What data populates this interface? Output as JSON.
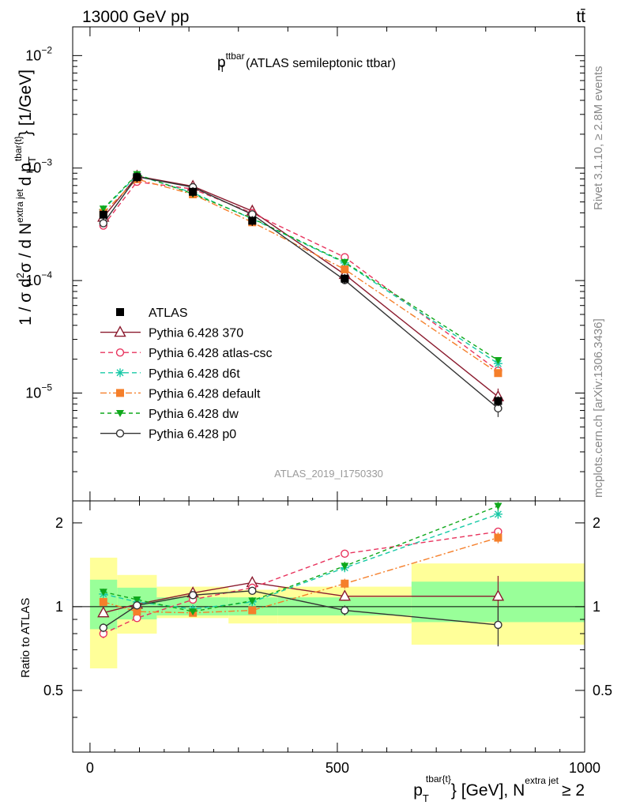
{
  "header": {
    "left": "13000 GeV pp",
    "right": "tt̄"
  },
  "side_labels": {
    "rivet": "Rivet 3.1.10, ≥ 2.8M events",
    "mcplots": "mcplots.cern.ch [arXiv:1306.3436]"
  },
  "watermark": "ATLAS_2019_I1750330",
  "chart_data": {
    "type": "line",
    "title": {
      "main": "p",
      "sup": "ttbar",
      "sub": "T",
      "rest": "(ATLAS semileptonic ttbar)"
    },
    "xlabel": {
      "p": "p",
      "sub": "T",
      "sup": "tbar{t}",
      "rest": "} [GeV], N",
      "sup2": "extra jet",
      "tail": "≥ 2"
    },
    "ylabel": {
      "pre": "1 / σ d",
      "sup1": "2",
      "mid": "σ / d N",
      "sup2": "extra jet",
      "mid2": "d p",
      "sub": "T",
      "sup3": "tbar{t}",
      "post": "} [1/GeV]"
    },
    "xlim": [
      -35,
      1000
    ],
    "ylim_main": [
      1.1e-06,
      0.018
    ],
    "yscale_main": "log",
    "ylim_ratio": [
      0.3,
      2.4
    ],
    "ratio_ylabel": "Ratio to ATLAS",
    "x_ticks": [
      0,
      500,
      1000
    ],
    "x_tick_labels": [
      "0",
      "500",
      "1000"
    ],
    "y_ticks_main": [
      1e-05,
      0.0001,
      0.001,
      0.01
    ],
    "y_tick_labels_main": [
      {
        "base": "10",
        "exp": "−5"
      },
      {
        "base": "10",
        "exp": "−4"
      },
      {
        "base": "10",
        "exp": "−3"
      },
      {
        "base": "10",
        "exp": "−2"
      }
    ],
    "y_ticks_ratio": [
      0.5,
      1,
      2
    ],
    "y_tick_labels_ratio": [
      "0.5",
      "1",
      "2"
    ],
    "x": [
      27,
      95,
      208,
      328,
      515,
      825
    ],
    "data": {
      "name": "ATLAS",
      "values": [
        0.000385,
        0.00083,
        0.000615,
        0.00034,
        0.000104,
        8.5e-06
      ],
      "bins": [
        [
          0,
          55
        ],
        [
          55,
          135
        ],
        [
          135,
          280
        ],
        [
          280,
          380
        ],
        [
          380,
          650
        ],
        [
          650,
          1000
        ]
      ],
      "band_inner": [
        [
          0.83,
          1.25
        ],
        [
          0.9,
          1.17
        ],
        [
          0.93,
          1.08
        ],
        [
          0.93,
          1.08
        ],
        [
          0.93,
          1.08
        ],
        [
          0.88,
          1.23
        ]
      ],
      "band_outer": [
        [
          0.6,
          1.5
        ],
        [
          0.8,
          1.3
        ],
        [
          0.91,
          1.18
        ],
        [
          0.87,
          1.15
        ],
        [
          0.87,
          1.18
        ],
        [
          0.73,
          1.43
        ]
      ]
    },
    "series": [
      {
        "name": "Pythia 6.428 370",
        "color": "#8b1a2e",
        "dash": "",
        "marker": "triangle-open",
        "ratio": [
          0.95,
          1.02,
          1.12,
          1.22,
          1.09,
          1.09
        ],
        "ratio_err": [
          0.03,
          0.02,
          0.02,
          0.03,
          0.04,
          0.2
        ]
      },
      {
        "name": "Pythia 6.428 atlas-csc",
        "color": "#e8335d",
        "dash": "6,4",
        "marker": "circle-open",
        "ratio": [
          0.8,
          0.91,
          1.06,
          1.17,
          1.55,
          1.86
        ],
        "ratio_err": [
          0.03,
          0.02,
          0.02,
          0.03,
          0.05,
          0.06
        ]
      },
      {
        "name": "Pythia 6.428 d6t",
        "color": "#17c9a6",
        "dash": "6,4",
        "marker": "star",
        "ratio": [
          1.11,
          1.04,
          0.98,
          1.04,
          1.38,
          2.15
        ],
        "ratio_err": [
          0.03,
          0.02,
          0.02,
          0.03,
          0.05,
          0.08
        ]
      },
      {
        "name": "Pythia 6.428 default",
        "color": "#f57f2a",
        "dash": "8,3,2,3",
        "marker": "square",
        "ratio": [
          1.04,
          0.96,
          0.95,
          0.97,
          1.21,
          1.77
        ],
        "ratio_err": [
          0.03,
          0.02,
          0.02,
          0.03,
          0.05,
          0.08
        ]
      },
      {
        "name": "Pythia 6.428 dw",
        "color": "#0fa81b",
        "dash": "5,4",
        "marker": "triangle-down-filled",
        "ratio": [
          1.13,
          1.06,
          0.96,
          1.05,
          1.4,
          2.3
        ],
        "ratio_err": [
          0.03,
          0.02,
          0.02,
          0.03,
          0.05,
          0.08
        ]
      },
      {
        "name": "Pythia 6.428 p0",
        "color": "#333333",
        "dash": "",
        "marker": "circle-open",
        "ratio": [
          0.84,
          1.01,
          1.1,
          1.14,
          0.97,
          0.86
        ],
        "ratio_err": [
          0.03,
          0.02,
          0.02,
          0.03,
          0.04,
          0.14
        ]
      }
    ]
  }
}
